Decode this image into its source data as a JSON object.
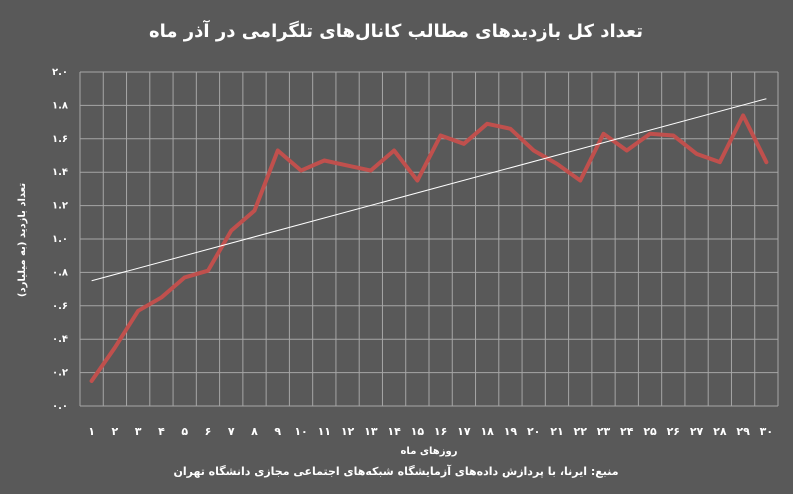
{
  "chart_data": {
    "type": "line",
    "title": "تعداد کل بازدیدهای مطالب کانال‌های تلگرامی در آذر ماه",
    "y_label": "تعداد بازدید (به میلیارد)",
    "x_label": "روزهای ماه",
    "source": "منبع: ایرنا، با پردازش داده‌های آزمایشگاه شبکه‌های اجتماعی مجازی دانشگاه تهران",
    "categories": [
      "۱",
      "۲",
      "۳",
      "۴",
      "۵",
      "۶",
      "۷",
      "۸",
      "۹",
      "۱۰",
      "۱۱",
      "۱۲",
      "۱۳",
      "۱۴",
      "۱۵",
      "۱۶",
      "۱۷",
      "۱۸",
      "۱۹",
      "۲۰",
      "۲۱",
      "۲۲",
      "۲۳",
      "۲۴",
      "۲۵",
      "۲۶",
      "۲۷",
      "۲۸",
      "۲۹",
      "۳۰"
    ],
    "values": [
      0.15,
      0.35,
      0.57,
      0.65,
      0.77,
      0.81,
      1.05,
      1.17,
      1.53,
      1.41,
      1.47,
      1.44,
      1.41,
      1.53,
      1.35,
      1.62,
      1.57,
      1.69,
      1.66,
      1.53,
      1.45,
      1.35,
      1.63,
      1.53,
      1.63,
      1.62,
      1.51,
      1.46,
      1.74,
      1.46
    ],
    "color": "#c0504d",
    "trendline": {
      "values": [
        0.75,
        1.84
      ],
      "color": "#ffffff"
    },
    "ylim": [
      0,
      2
    ],
    "yticks": [
      {
        "value": 0,
        "label": "۰.۰"
      },
      {
        "value": 0.2,
        "label": "۰.۲"
      },
      {
        "value": 0.4,
        "label": "۰.۴"
      },
      {
        "value": 0.6,
        "label": "۰.۶"
      },
      {
        "value": 0.8,
        "label": "۰.۸"
      },
      {
        "value": 1,
        "label": "۱.۰"
      },
      {
        "value": 1.2,
        "label": "۱.۲"
      },
      {
        "value": 1.4,
        "label": "۱.۴"
      },
      {
        "value": 1.6,
        "label": "۱.۶"
      },
      {
        "value": 1.8,
        "label": "۱.۸"
      },
      {
        "value": 2,
        "label": "۲.۰"
      }
    ],
    "grid": true
  }
}
